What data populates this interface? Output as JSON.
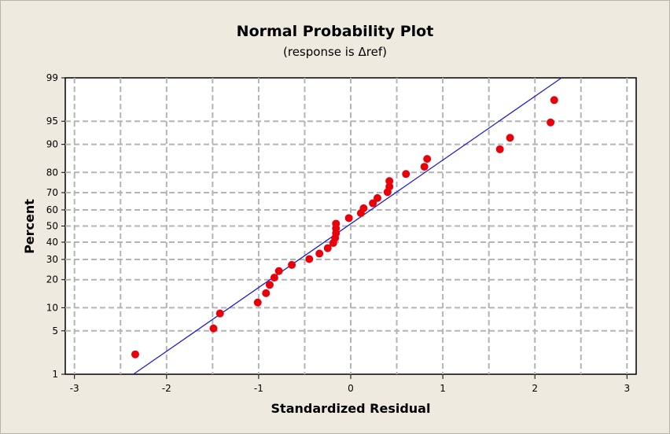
{
  "chart_data": {
    "type": "scatter",
    "title": "Normal Probability Plot",
    "subtitle": "(response is Δref)",
    "xlabel": "Standardized Residual",
    "ylabel": "Percent",
    "xlim": [
      -3.1,
      3.1
    ],
    "x_ticks": [
      -3,
      -2,
      -1,
      0,
      1,
      2,
      3
    ],
    "y_scale": "normal-probability",
    "y_ticks": [
      1,
      5,
      10,
      20,
      30,
      40,
      50,
      60,
      70,
      80,
      90,
      95,
      99
    ],
    "ylim": [
      1,
      99
    ],
    "grid": true,
    "points_color": "#e8000b",
    "fit_line_color": "#1f1fcc",
    "fit_line": {
      "x": [
        -2.36,
        2.29
      ],
      "y": [
        1,
        99
      ]
    },
    "points": [
      {
        "x": -2.34,
        "y": 2.2
      },
      {
        "x": -1.49,
        "y": 5.4
      },
      {
        "x": -1.42,
        "y": 8.5
      },
      {
        "x": -1.01,
        "y": 11.5
      },
      {
        "x": -0.92,
        "y": 14.6
      },
      {
        "x": -0.88,
        "y": 17.8
      },
      {
        "x": -0.83,
        "y": 20.9
      },
      {
        "x": -0.78,
        "y": 24.0
      },
      {
        "x": -0.64,
        "y": 27.1
      },
      {
        "x": -0.45,
        "y": 30.2
      },
      {
        "x": -0.34,
        "y": 33.3
      },
      {
        "x": -0.25,
        "y": 36.4
      },
      {
        "x": -0.19,
        "y": 39.5
      },
      {
        "x": -0.17,
        "y": 42.5
      },
      {
        "x": -0.16,
        "y": 45.5
      },
      {
        "x": -0.16,
        "y": 48.5
      },
      {
        "x": -0.16,
        "y": 51.5
      },
      {
        "x": -0.02,
        "y": 55.0
      },
      {
        "x": 0.11,
        "y": 58.0
      },
      {
        "x": 0.14,
        "y": 61.0
      },
      {
        "x": 0.24,
        "y": 64.0
      },
      {
        "x": 0.29,
        "y": 67.0
      },
      {
        "x": 0.4,
        "y": 70.3
      },
      {
        "x": 0.42,
        "y": 73.2
      },
      {
        "x": 0.42,
        "y": 76.0
      },
      {
        "x": 0.6,
        "y": 79.3
      },
      {
        "x": 0.8,
        "y": 82.4
      },
      {
        "x": 0.83,
        "y": 85.4
      },
      {
        "x": 1.62,
        "y": 88.6
      },
      {
        "x": 1.73,
        "y": 91.7
      },
      {
        "x": 2.17,
        "y": 94.8
      },
      {
        "x": 2.21,
        "y": 97.6
      }
    ]
  }
}
